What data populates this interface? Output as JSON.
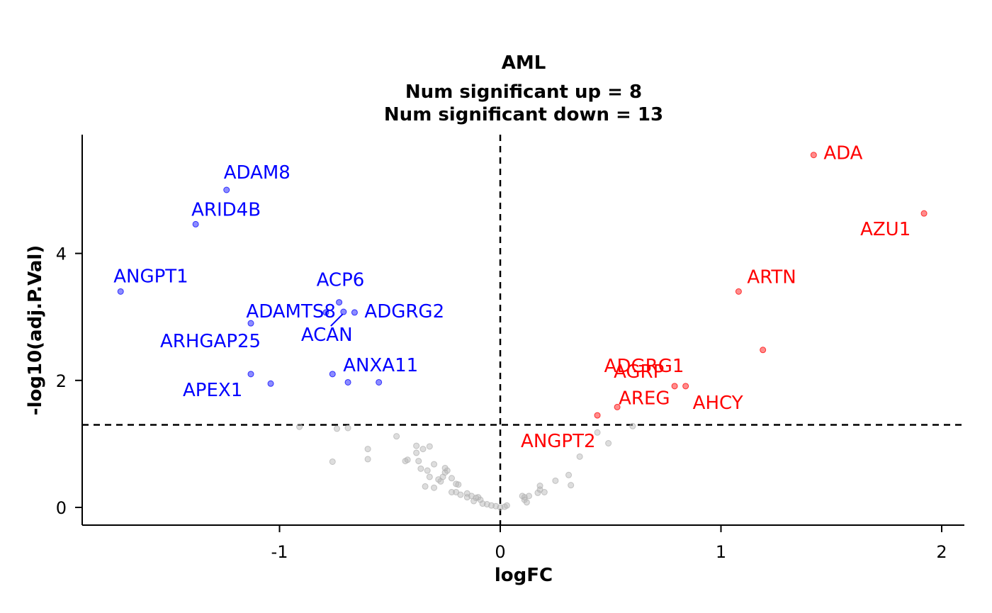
{
  "chart_data": {
    "type": "scatter",
    "title": "AML",
    "subtitle_lines": [
      "Num significant up = 8",
      "Num significant down = 13"
    ],
    "xlabel": "logFC",
    "ylabel": "-log10(adj.P.Val)",
    "xlim": [
      -1.9,
      2.1
    ],
    "ylim": [
      -0.55,
      5.8
    ],
    "x_ticks": [
      -1,
      0,
      1,
      2
    ],
    "y_ticks": [
      0,
      2,
      4
    ],
    "thresholds": {
      "x": 0,
      "y": 1.3
    },
    "grid": false,
    "colors": {
      "up": "#ff0000",
      "down": "#0000ff",
      "ns": "#b3b3b3"
    },
    "series": [
      {
        "group": "down",
        "color": "#0000ff",
        "points": [
          {
            "x": -1.24,
            "y": 5.0,
            "label": "ADAM8"
          },
          {
            "x": -1.38,
            "y": 4.46,
            "label": "ARID4B"
          },
          {
            "x": -1.72,
            "y": 3.4,
            "label": "ANGPT1"
          },
          {
            "x": -0.73,
            "y": 3.23,
            "label": "ACP6"
          },
          {
            "x": -0.79,
            "y": 3.07,
            "label": "ADAMTS8"
          },
          {
            "x": -0.71,
            "y": 3.08,
            "label": "ACAN"
          },
          {
            "x": -0.66,
            "y": 3.07,
            "label": "ADGRG2"
          },
          {
            "x": -1.13,
            "y": 2.9,
            "label": "ARHGAP25"
          },
          {
            "x": -0.76,
            "y": 2.1,
            "label": "ANXA11"
          },
          {
            "x": -1.13,
            "y": 2.1,
            "label": "APEX1"
          },
          {
            "x": -1.04,
            "y": 1.95,
            "label": ""
          },
          {
            "x": -0.69,
            "y": 1.97,
            "label": ""
          },
          {
            "x": -0.55,
            "y": 1.97,
            "label": ""
          }
        ]
      },
      {
        "group": "up",
        "color": "#ff0000",
        "points": [
          {
            "x": 1.42,
            "y": 5.55,
            "label": "ADA"
          },
          {
            "x": 1.92,
            "y": 4.63,
            "label": "AZU1"
          },
          {
            "x": 1.08,
            "y": 3.4,
            "label": "ARTN"
          },
          {
            "x": 1.19,
            "y": 2.48,
            "label": "ADGRG1"
          },
          {
            "x": 0.79,
            "y": 1.91,
            "label": "AGRP"
          },
          {
            "x": 0.84,
            "y": 1.91,
            "label": "AHCY"
          },
          {
            "x": 0.53,
            "y": 1.58,
            "label": "AREG"
          },
          {
            "x": 0.44,
            "y": 1.45,
            "label": "ANGPT2"
          }
        ]
      },
      {
        "group": "ns",
        "color": "#b3b3b3",
        "points": [
          {
            "x": -0.91,
            "y": 1.27
          },
          {
            "x": -0.74,
            "y": 1.24
          },
          {
            "x": -0.69,
            "y": 1.25
          },
          {
            "x": -0.76,
            "y": 0.72
          },
          {
            "x": -0.6,
            "y": 0.92
          },
          {
            "x": -0.6,
            "y": 0.76
          },
          {
            "x": -0.47,
            "y": 1.12
          },
          {
            "x": -0.43,
            "y": 0.73
          },
          {
            "x": -0.42,
            "y": 0.75
          },
          {
            "x": -0.38,
            "y": 0.97
          },
          {
            "x": -0.38,
            "y": 0.86
          },
          {
            "x": -0.35,
            "y": 0.92
          },
          {
            "x": -0.32,
            "y": 0.96
          },
          {
            "x": -0.37,
            "y": 0.73
          },
          {
            "x": -0.36,
            "y": 0.61
          },
          {
            "x": -0.33,
            "y": 0.58
          },
          {
            "x": -0.3,
            "y": 0.68
          },
          {
            "x": -0.32,
            "y": 0.48
          },
          {
            "x": -0.28,
            "y": 0.44
          },
          {
            "x": -0.34,
            "y": 0.33
          },
          {
            "x": -0.3,
            "y": 0.31
          },
          {
            "x": -0.27,
            "y": 0.41
          },
          {
            "x": -0.25,
            "y": 0.55
          },
          {
            "x": -0.25,
            "y": 0.62
          },
          {
            "x": -0.26,
            "y": 0.48
          },
          {
            "x": -0.24,
            "y": 0.58
          },
          {
            "x": -0.22,
            "y": 0.46
          },
          {
            "x": -0.2,
            "y": 0.37
          },
          {
            "x": -0.19,
            "y": 0.36
          },
          {
            "x": -0.22,
            "y": 0.24
          },
          {
            "x": -0.2,
            "y": 0.24
          },
          {
            "x": -0.18,
            "y": 0.2
          },
          {
            "x": -0.15,
            "y": 0.22
          },
          {
            "x": -0.15,
            "y": 0.16
          },
          {
            "x": -0.13,
            "y": 0.18
          },
          {
            "x": -0.11,
            "y": 0.15
          },
          {
            "x": -0.12,
            "y": 0.1
          },
          {
            "x": -0.1,
            "y": 0.16
          },
          {
            "x": -0.09,
            "y": 0.12
          },
          {
            "x": -0.08,
            "y": 0.06
          },
          {
            "x": -0.06,
            "y": 0.05
          },
          {
            "x": -0.04,
            "y": 0.03
          },
          {
            "x": -0.02,
            "y": 0.02
          },
          {
            "x": 0.0,
            "y": 0.0
          },
          {
            "x": 0.02,
            "y": 0.01
          },
          {
            "x": 0.03,
            "y": 0.03
          },
          {
            "x": 0.1,
            "y": 0.18
          },
          {
            "x": 0.11,
            "y": 0.16
          },
          {
            "x": 0.11,
            "y": 0.12
          },
          {
            "x": 0.12,
            "y": 0.08
          },
          {
            "x": 0.13,
            "y": 0.18
          },
          {
            "x": 0.17,
            "y": 0.23
          },
          {
            "x": 0.18,
            "y": 0.28
          },
          {
            "x": 0.18,
            "y": 0.34
          },
          {
            "x": 0.2,
            "y": 0.24
          },
          {
            "x": 0.25,
            "y": 0.42
          },
          {
            "x": 0.31,
            "y": 0.51
          },
          {
            "x": 0.32,
            "y": 0.35
          },
          {
            "x": 0.36,
            "y": 0.8
          },
          {
            "x": 0.49,
            "y": 1.01
          },
          {
            "x": 0.44,
            "y": 1.18
          },
          {
            "x": 0.6,
            "y": 1.28
          }
        ]
      }
    ]
  }
}
